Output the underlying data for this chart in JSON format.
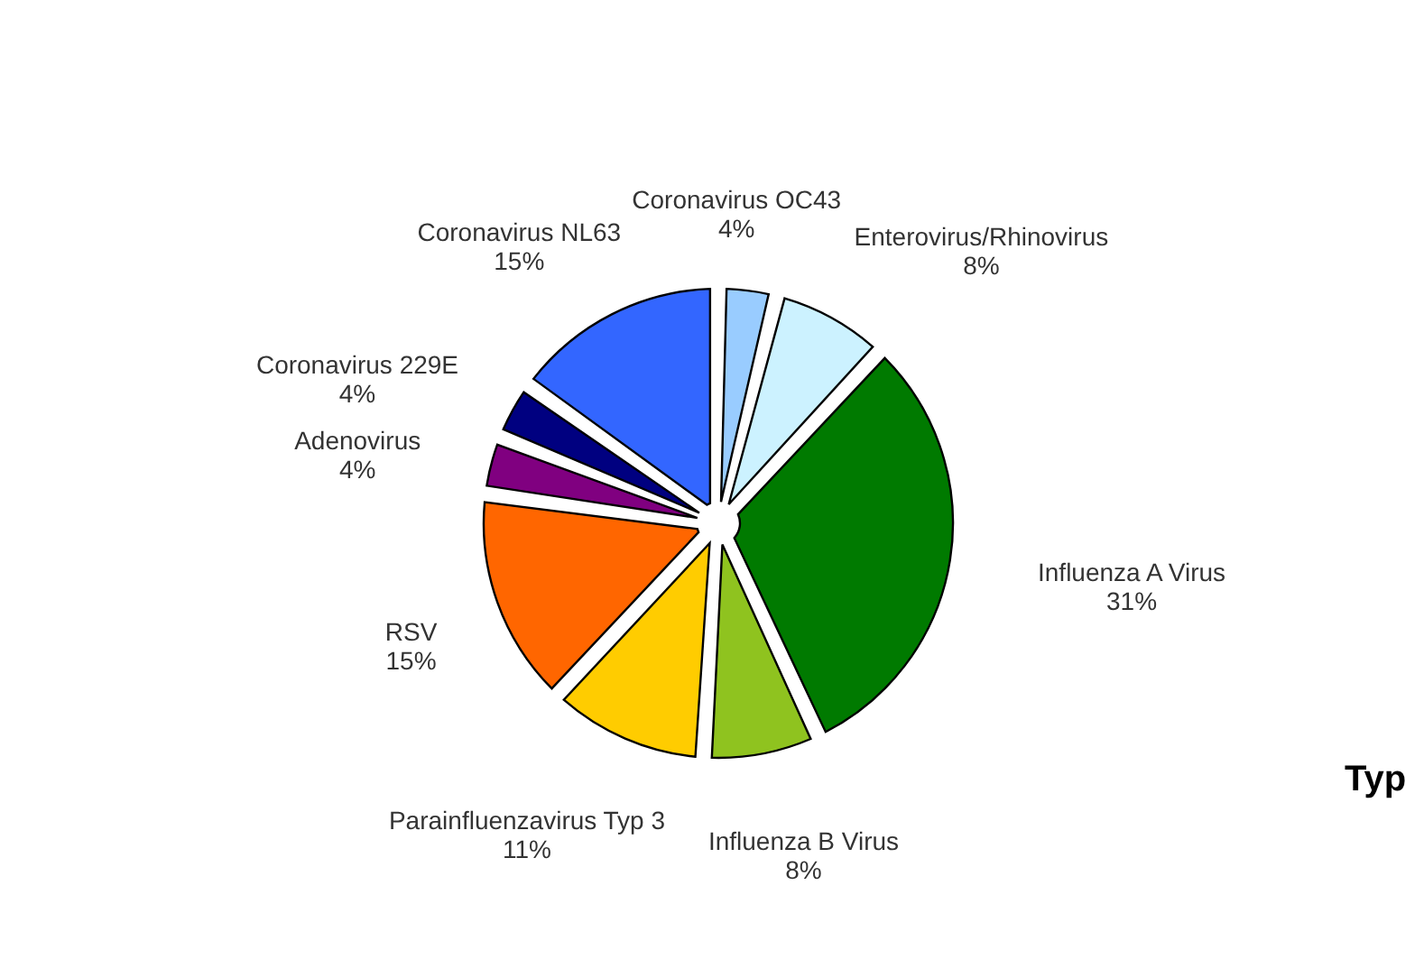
{
  "chart_data": {
    "type": "pie",
    "categories": [
      "Coronavirus OC43",
      "Enterovirus/Rhinovirus",
      "Influenza A Virus",
      "Influenza B Virus",
      "Parainfluenzavirus Typ 3",
      "RSV",
      "Adenovirus",
      "Coronavirus 229E",
      "Coronavirus NL63"
    ],
    "values": [
      4,
      8,
      31,
      8,
      11,
      15,
      4,
      4,
      15
    ],
    "value_labels": [
      "4%",
      "8%",
      "31%",
      "8%",
      "11%",
      "15%",
      "4%",
      "4%",
      "15%"
    ],
    "colors": [
      "#99ccff",
      "#ccf2ff",
      "#007a00",
      "#8fc31f",
      "#ffcc00",
      "#ff6600",
      "#800080",
      "#000080",
      "#3366ff"
    ],
    "annotations": [
      "Typ"
    ]
  }
}
